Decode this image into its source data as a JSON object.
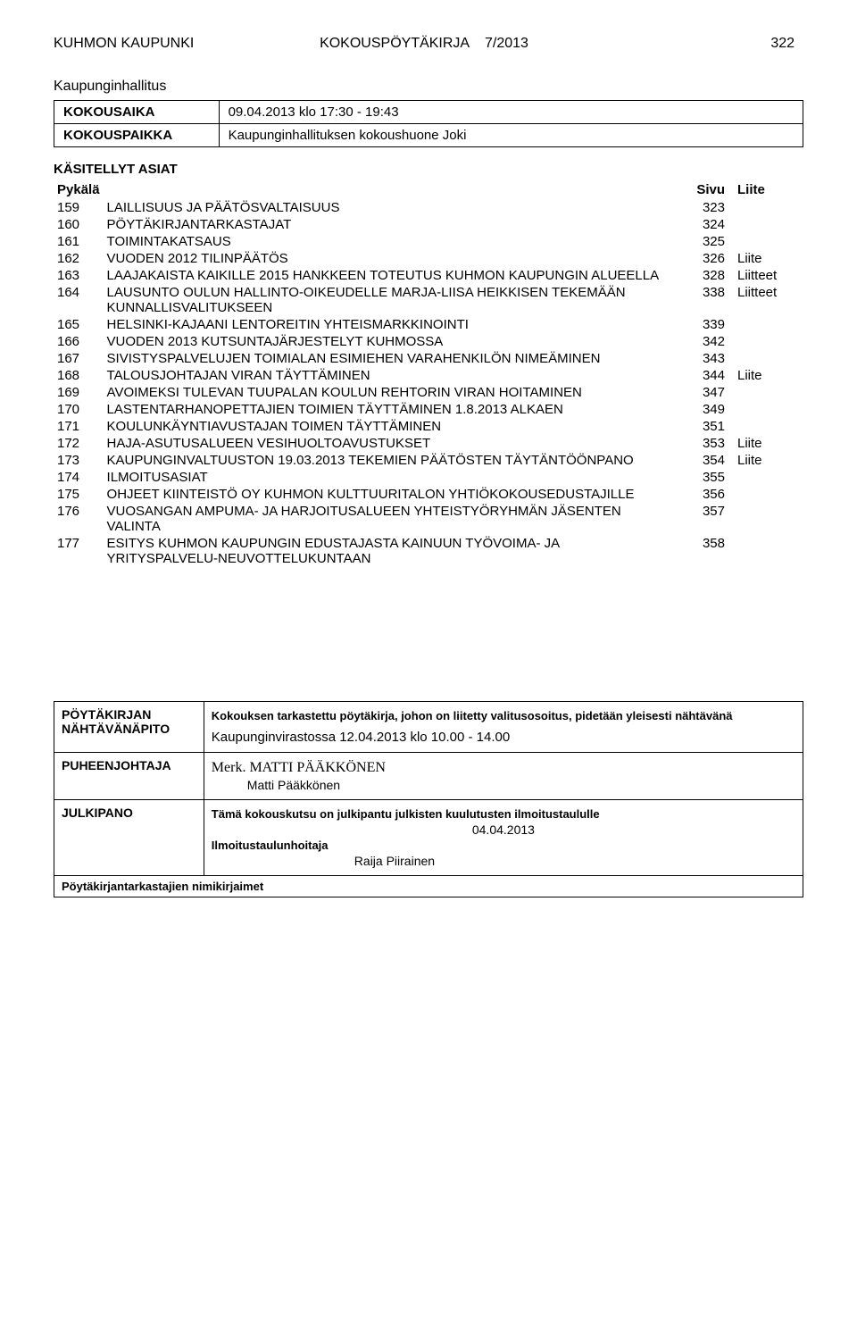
{
  "header": {
    "org": "KUHMON KAUPUNKI",
    "doc": "KOKOUSPÖYTÄKIRJA",
    "ref": "7/2013",
    "page": "322"
  },
  "body_title": "Kaupunginhallitus",
  "meeting": {
    "time_label": "KOKOUSAIKA",
    "time_value": "09.04.2013 klo 17:30 - 19:43",
    "place_label": "KOKOUSPAIKKA",
    "place_value": "Kaupunginhallituksen kokoushuone Joki"
  },
  "asiat_title": "KÄSITELLYT ASIAT",
  "asiat_cols": {
    "pykala": "Pykälä",
    "sivu": "Sivu",
    "liite": "Liite"
  },
  "items": [
    {
      "n": "159",
      "t": "LAILLISUUS JA PÄÄTÖSVALTAISUUS",
      "s": "323",
      "l": ""
    },
    {
      "n": "160",
      "t": "PÖYTÄKIRJANTARKASTAJAT",
      "s": "324",
      "l": ""
    },
    {
      "n": "161",
      "t": "TOIMINTAKATSAUS",
      "s": "325",
      "l": ""
    },
    {
      "n": "162",
      "t": "VUODEN 2012 TILINPÄÄTÖS",
      "s": "326",
      "l": "Liite"
    },
    {
      "n": "163",
      "t": "LAAJAKAISTA KAIKILLE 2015 HANKKEEN TOTEUTUS KUHMON KAUPUNGIN ALUEELLA",
      "s": "328",
      "l": "Liitteet"
    },
    {
      "n": "164",
      "t": "LAUSUNTO OULUN HALLINTO-OIKEUDELLE MARJA-LIISA HEIKKISEN TEKEMÄÄN KUNNALLISVALITUKSEEN",
      "s": "338",
      "l": "Liitteet"
    },
    {
      "n": "165",
      "t": "HELSINKI-KAJAANI LENTOREITIN YHTEISMARKKINOINTI",
      "s": "339",
      "l": ""
    },
    {
      "n": "166",
      "t": "VUODEN 2013 KUTSUNTAJÄRJESTELYT KUHMOSSA",
      "s": "342",
      "l": ""
    },
    {
      "n": "167",
      "t": "SIVISTYSPALVELUJEN TOIMIALAN ESIMIEHEN VARAHENKILÖN NIMEÄMINEN",
      "s": "343",
      "l": ""
    },
    {
      "n": "168",
      "t": "TALOUSJOHTAJAN VIRAN TÄYTTÄMINEN",
      "s": "344",
      "l": "Liite"
    },
    {
      "n": "169",
      "t": "AVOIMEKSI TULEVAN TUUPALAN KOULUN REHTORIN VIRAN HOITAMINEN",
      "s": "347",
      "l": ""
    },
    {
      "n": "170",
      "t": "LASTENTARHANOPETTAJIEN TOIMIEN TÄYTTÄMINEN 1.8.2013 ALKAEN",
      "s": "349",
      "l": ""
    },
    {
      "n": "171",
      "t": "KOULUNKÄYNTIAVUSTAJAN TOIMEN TÄYTTÄMINEN",
      "s": "351",
      "l": ""
    },
    {
      "n": "172",
      "t": "HAJA-ASUTUSALUEEN VESIHUOLTOAVUSTUKSET",
      "s": "353",
      "l": "Liite"
    },
    {
      "n": "173",
      "t": "KAUPUNGINVALTUUSTON 19.03.2013 TEKEMIEN PÄÄTÖSTEN TÄYTÄNTÖÖNPANO",
      "s": "354",
      "l": "Liite"
    },
    {
      "n": "174",
      "t": "ILMOITUSASIAT",
      "s": "355",
      "l": ""
    },
    {
      "n": "175",
      "t": "OHJEET KIINTEISTÖ OY KUHMON KULTTUURITALON YHTIÖKOKOUSEDUSTAJILLE",
      "s": "356",
      "l": ""
    },
    {
      "n": "176",
      "t": "VUOSANGAN AMPUMA- JA HARJOITUSALUEEN YHTEISTYÖRYHMÄN JÄSENTEN VALINTA",
      "s": "357",
      "l": ""
    },
    {
      "n": "177",
      "t": "ESITYS KUHMON KAUPUNGIN EDUSTAJASTA KAINUUN TYÖVOIMA- JA YRITYSPALVELU-NEUVOTTELUKUNTAAN",
      "s": "358",
      "l": ""
    }
  ],
  "footer": {
    "r1_label_a": "PÖYTÄKIRJAN",
    "r1_label_b": "NÄHTÄVÄNÄPITO",
    "r1_note": "Kokouksen tarkastettu pöytäkirja, johon on liitetty valitusosoitus, pidetään yleisesti nähtävänä",
    "r1_place": "Kaupunginvirastossa 12.04.2013 klo 10.00 - 14.00",
    "r2_label": "PUHEENJOHTAJA",
    "r2_sig": "Merk. MATTI PÄÄKKÖNEN",
    "r2_name": "Matti Pääkkönen",
    "r3_label": "JULKIPANO",
    "r3_note": "Tämä kokouskutsu on julkipantu julkisten kuulutusten ilmoitustaululle",
    "r3_date": "04.04.2013",
    "r3_role": "Ilmoitustaulunhoitaja",
    "r3_name": "Raija Piirainen",
    "bottom": "Pöytäkirjantarkastajien nimikirjaimet"
  }
}
